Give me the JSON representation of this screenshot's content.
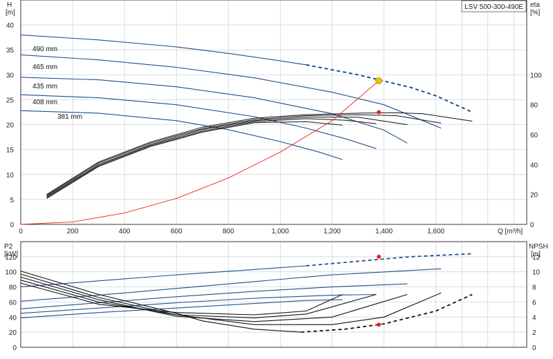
{
  "chart_data": [
    {
      "type": "line",
      "title": "LSV 500-300-490E",
      "xlabel": "Q [m³/h]",
      "ylabel_left": "H [m]",
      "ylabel_left_top": "H",
      "ylabel_left_unit": "[m]",
      "ylabel_right_top": "eta",
      "ylabel_right_unit": "[%]",
      "x_ticks": [
        "0",
        "200",
        "400",
        "600",
        "800",
        "1,000",
        "1,200",
        "1,400",
        "1,600"
      ],
      "x_axis_label": "Q [m³/h]",
      "xlim": [
        0,
        1950
      ],
      "ylim": [
        0,
        45
      ],
      "y_ticks": [
        "0",
        "5",
        "10",
        "15",
        "20",
        "25",
        "30",
        "35",
        "40"
      ],
      "ylim_right": [
        0,
        150
      ],
      "y_ticks_right": [
        "0",
        "20",
        "40",
        "60",
        "80",
        "100"
      ],
      "grid": true,
      "series": [
        {
          "name": "490 mm",
          "kind": "head",
          "x": [
            0,
            300,
            600,
            800,
            1000,
            1100
          ],
          "y": [
            38.0,
            37.0,
            35.6,
            34.3,
            32.8,
            32.0
          ],
          "dashed_x": [
            1100,
            1300,
            1500,
            1600,
            1740
          ],
          "dashed_y": [
            32.0,
            30.0,
            27.5,
            25.8,
            22.5
          ]
        },
        {
          "name": "465 mm",
          "kind": "head",
          "x": [
            0,
            300,
            600,
            900,
            1200,
            1400,
            1620
          ],
          "y": [
            34.0,
            33.0,
            31.5,
            29.4,
            26.5,
            24.0,
            19.3
          ]
        },
        {
          "name": "435 mm",
          "kind": "head",
          "x": [
            0,
            300,
            600,
            900,
            1200,
            1400,
            1490
          ],
          "y": [
            29.5,
            29.0,
            27.6,
            25.4,
            22.2,
            18.9,
            16.3
          ]
        },
        {
          "name": "408 mm",
          "kind": "head",
          "x": [
            0,
            300,
            600,
            900,
            1100,
            1250,
            1370
          ],
          "y": [
            26.0,
            25.4,
            24.0,
            21.6,
            19.3,
            17.2,
            15.2
          ]
        },
        {
          "name": "381 mm",
          "kind": "head",
          "x": [
            0,
            300,
            600,
            800,
            1000,
            1150,
            1240
          ],
          "y": [
            22.8,
            22.3,
            20.8,
            19.0,
            16.6,
            14.5,
            13.0
          ]
        },
        {
          "name": "",
          "kind": "eff",
          "x": [
            100,
            300,
            500,
            700,
            900,
            1100,
            1300,
            1450,
            1550,
            1740
          ],
          "y": [
            6.0,
            12.5,
            16.5,
            19.5,
            21.3,
            22.0,
            22.3,
            22.4,
            22.2,
            20.7
          ]
        },
        {
          "name": "",
          "kind": "eff",
          "x": [
            100,
            300,
            500,
            700,
            900,
            1100,
            1300,
            1450,
            1620
          ],
          "y": [
            5.8,
            12.3,
            16.3,
            19.2,
            21.0,
            21.8,
            22.0,
            21.8,
            20.3
          ]
        },
        {
          "name": "",
          "kind": "eff",
          "x": [
            100,
            300,
            500,
            700,
            900,
            1100,
            1300,
            1490
          ],
          "y": [
            5.6,
            12.0,
            16.0,
            19.0,
            20.8,
            21.5,
            21.5,
            20.0
          ]
        },
        {
          "name": "",
          "kind": "eff",
          "x": [
            100,
            300,
            500,
            700,
            900,
            1100,
            1250,
            1370
          ],
          "y": [
            5.4,
            11.8,
            15.8,
            18.7,
            20.6,
            21.2,
            20.9,
            20.2
          ]
        },
        {
          "name": "",
          "kind": "eff",
          "x": [
            100,
            300,
            500,
            700,
            900,
            1100,
            1240
          ],
          "y": [
            5.2,
            11.6,
            15.6,
            18.5,
            20.4,
            20.6,
            19.9
          ]
        },
        {
          "name": "",
          "kind": "system",
          "x": [
            0,
            200,
            400,
            600,
            800,
            1000,
            1200,
            1380
          ],
          "y": [
            0.0,
            0.5,
            2.3,
            5.2,
            9.3,
            14.5,
            20.8,
            28.8
          ]
        }
      ],
      "operating_point": {
        "x": 1380,
        "y": 28.8
      },
      "efficiency_point": {
        "x": 1380,
        "y": 22.5
      }
    },
    {
      "type": "line",
      "ylabel_left_top": "P2",
      "ylabel_left_unit": "[kW]",
      "ylabel_right_top": "NPSH",
      "ylabel_right_unit": "[m]",
      "xlim": [
        0,
        1950
      ],
      "ylim": [
        0,
        140
      ],
      "y_ticks": [
        "0",
        "20",
        "40",
        "60",
        "80",
        "100",
        "120"
      ],
      "ylim_right": [
        0,
        14
      ],
      "y_ticks_right": [
        "0",
        "2",
        "4",
        "6",
        "8",
        "10",
        "12"
      ],
      "grid": true,
      "series": [
        {
          "name": "",
          "kind": "power",
          "x": [
            0,
            300,
            600,
            900,
            1100
          ],
          "y": [
            80,
            88,
            96,
            103,
            108
          ],
          "dashed_x": [
            1100,
            1300,
            1500,
            1740
          ],
          "dashed_y": [
            108,
            114,
            120,
            124
          ]
        },
        {
          "name": "",
          "kind": "power",
          "x": [
            0,
            300,
            600,
            900,
            1200,
            1620
          ],
          "y": [
            61,
            69,
            78,
            87,
            96,
            104
          ]
        },
        {
          "name": "",
          "kind": "power",
          "x": [
            0,
            300,
            600,
            900,
            1200,
            1490
          ],
          "y": [
            51,
            59,
            67,
            74,
            80,
            84
          ]
        },
        {
          "name": "",
          "kind": "power",
          "x": [
            0,
            300,
            600,
            900,
            1200,
            1370
          ],
          "y": [
            45,
            52,
            59,
            65,
            69,
            70
          ]
        },
        {
          "name": "",
          "kind": "power",
          "x": [
            0,
            300,
            600,
            900,
            1100,
            1240
          ],
          "y": [
            39,
            46,
            52,
            58,
            62,
            63
          ]
        },
        {
          "name": "",
          "kind": "npsh",
          "x": [
            0,
            300,
            600,
            700,
            900,
            1080
          ],
          "y": [
            10.1,
            7.0,
            4.5,
            3.5,
            2.4,
            2.0
          ],
          "dashed_x": [
            1080,
            1250,
            1400,
            1600,
            1740
          ],
          "dashed_y": [
            2.0,
            2.4,
            3.1,
            4.8,
            7.0
          ]
        },
        {
          "name": "",
          "kind": "npsh",
          "x": [
            0,
            300,
            600,
            900,
            1200,
            1400,
            1620
          ],
          "y": [
            9.7,
            6.6,
            4.3,
            3.0,
            3.0,
            4.0,
            7.2
          ]
        },
        {
          "name": "",
          "kind": "npsh",
          "x": [
            0,
            300,
            600,
            900,
            1200,
            1490
          ],
          "y": [
            9.3,
            6.3,
            4.1,
            3.4,
            4.0,
            7.0
          ]
        },
        {
          "name": "",
          "kind": "npsh",
          "x": [
            0,
            300,
            600,
            900,
            1100,
            1370
          ],
          "y": [
            8.9,
            6.0,
            4.3,
            3.9,
            4.4,
            7.0
          ]
        },
        {
          "name": "",
          "kind": "npsh",
          "x": [
            0,
            300,
            600,
            900,
            1100,
            1240
          ],
          "y": [
            8.5,
            5.7,
            4.6,
            4.3,
            4.8,
            7.0
          ]
        }
      ],
      "operating_point_power": {
        "x": 1380,
        "y": 120
      },
      "operating_point_npsh": {
        "x": 1380,
        "y": 3.0
      }
    }
  ]
}
